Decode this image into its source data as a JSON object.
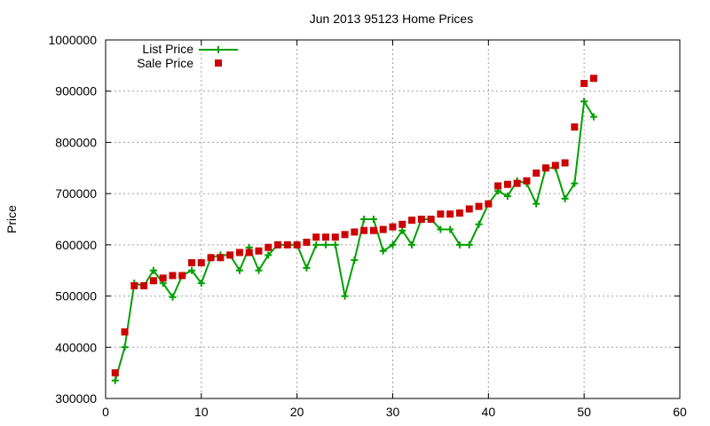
{
  "chart_data": {
    "type": "scatter",
    "title": "Jun 2013 95123 Home Prices",
    "xlabel": "",
    "ylabel": "Price",
    "xlim": [
      0,
      60
    ],
    "ylim": [
      300000,
      1000000
    ],
    "x_ticks": [
      "0",
      "10",
      "20",
      "30",
      "40",
      "50",
      "60"
    ],
    "y_ticks": [
      "300000",
      "400000",
      "500000",
      "600000",
      "700000",
      "800000",
      "900000",
      "1000000"
    ],
    "grid": true,
    "legend_position": "top-left",
    "series": [
      {
        "name": "List Price",
        "style": "line-with-plus-markers",
        "color": "#00a000",
        "x": [
          1,
          2,
          3,
          4,
          5,
          6,
          7,
          8,
          9,
          10,
          11,
          12,
          13,
          14,
          15,
          16,
          17,
          18,
          19,
          20,
          21,
          22,
          23,
          24,
          25,
          26,
          27,
          28,
          29,
          30,
          31,
          32,
          33,
          34,
          35,
          36,
          37,
          38,
          39,
          40,
          41,
          42,
          43,
          44,
          45,
          46,
          47,
          48,
          49,
          50,
          51
        ],
        "y": [
          335000,
          400000,
          525000,
          520000,
          550000,
          525000,
          498000,
          540000,
          550000,
          525000,
          575000,
          580000,
          580000,
          550000,
          595000,
          550000,
          580000,
          600000,
          600000,
          600000,
          555000,
          600000,
          600000,
          600000,
          500000,
          570000,
          650000,
          650000,
          588000,
          600000,
          628000,
          600000,
          650000,
          650000,
          630000,
          630000,
          600000,
          600000,
          640000,
          680000,
          705000,
          695000,
          725000,
          720000,
          680000,
          750000,
          750000,
          690000,
          720000,
          880000,
          850000
        ]
      },
      {
        "name": "Sale Price",
        "style": "square-markers",
        "color": "#cc0000",
        "x": [
          1,
          2,
          3,
          4,
          5,
          6,
          7,
          8,
          9,
          10,
          11,
          12,
          13,
          14,
          15,
          16,
          17,
          18,
          19,
          20,
          21,
          22,
          23,
          24,
          25,
          26,
          27,
          28,
          29,
          30,
          31,
          32,
          33,
          34,
          35,
          36,
          37,
          38,
          39,
          40,
          41,
          42,
          43,
          44,
          45,
          46,
          47,
          48,
          49,
          50,
          51
        ],
        "y": [
          350000,
          430000,
          520000,
          520000,
          530000,
          535000,
          540000,
          540000,
          565000,
          565000,
          575000,
          575000,
          580000,
          585000,
          585000,
          588000,
          595000,
          600000,
          600000,
          600000,
          605000,
          615000,
          615000,
          615000,
          620000,
          625000,
          628000,
          628000,
          630000,
          635000,
          640000,
          648000,
          650000,
          650000,
          660000,
          660000,
          662000,
          670000,
          675000,
          680000,
          715000,
          718000,
          720000,
          725000,
          740000,
          750000,
          755000,
          760000,
          830000,
          915000,
          925000
        ]
      }
    ]
  }
}
